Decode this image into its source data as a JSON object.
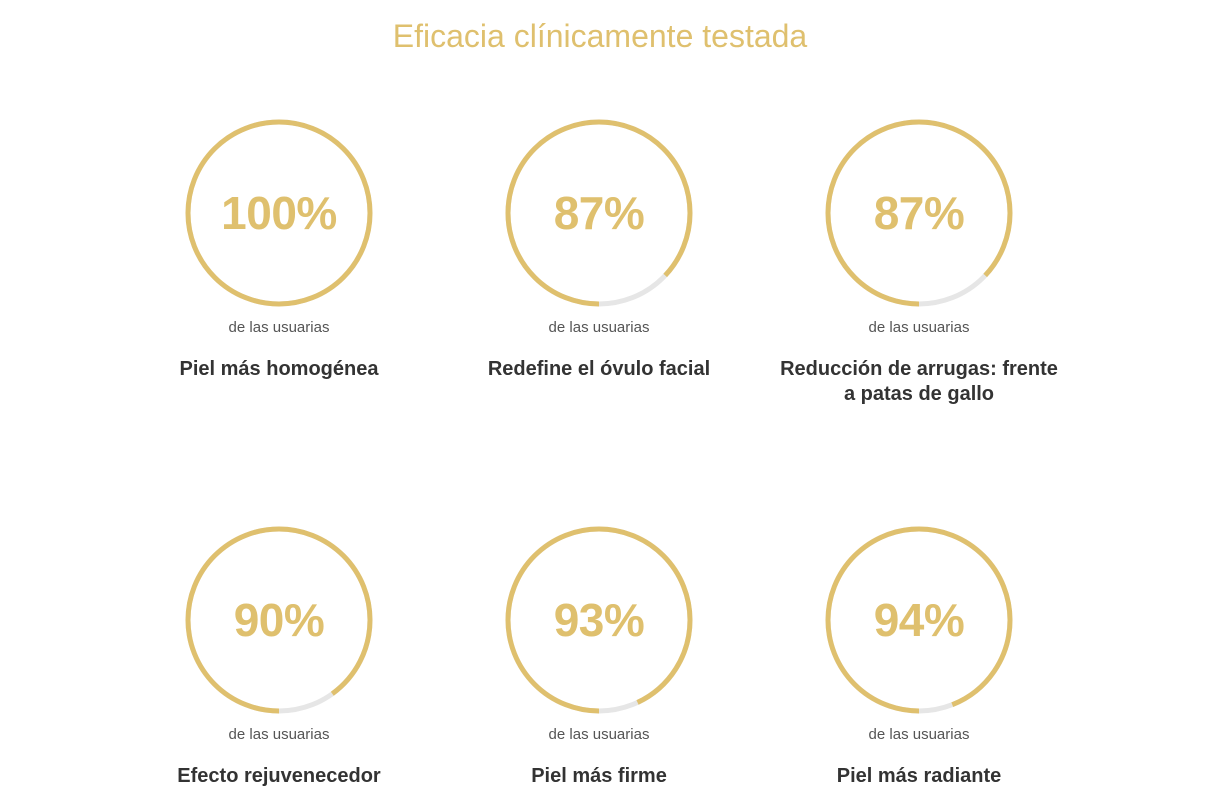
{
  "colors": {
    "accent": "#dfc06e",
    "track": "#e6e6e6",
    "label": "#333333",
    "caption": "#555555"
  },
  "section": {
    "title": "Eficacia clínicamente testada"
  },
  "stats": [
    {
      "percent_label": "100%",
      "value": 100,
      "caption": "de las usuarias",
      "label": "Piel más homogénea"
    },
    {
      "percent_label": "87%",
      "value": 87,
      "caption": "de las usuarias",
      "label": "Redefine el óvulo facial"
    },
    {
      "percent_label": "87%",
      "value": 87,
      "caption": "de las usuarias",
      "label": "Reducción de arrugas: frente a patas de gallo"
    },
    {
      "percent_label": "90%",
      "value": 90,
      "caption": "de las usuarias",
      "label": "Efecto rejuvenecedor"
    },
    {
      "percent_label": "93%",
      "value": 93,
      "caption": "de las usuarias",
      "label": "Piel más firme"
    },
    {
      "percent_label": "94%",
      "value": 94,
      "caption": "de las usuarias",
      "label": "Piel más radiante"
    }
  ]
}
